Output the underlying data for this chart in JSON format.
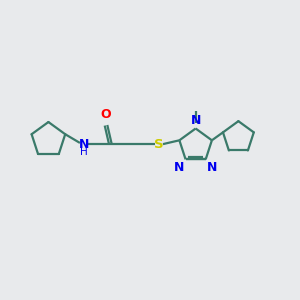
{
  "bg_color": "#e8eaec",
  "bond_color": "#3a7a6a",
  "N_color": "#0000ee",
  "O_color": "#ff0000",
  "S_color": "#cccc00",
  "line_width": 1.6,
  "font_size": 8.5,
  "fig_width": 3.0,
  "fig_height": 3.0,
  "dpi": 100,
  "xlim": [
    0,
    10
  ],
  "ylim": [
    0,
    10
  ]
}
